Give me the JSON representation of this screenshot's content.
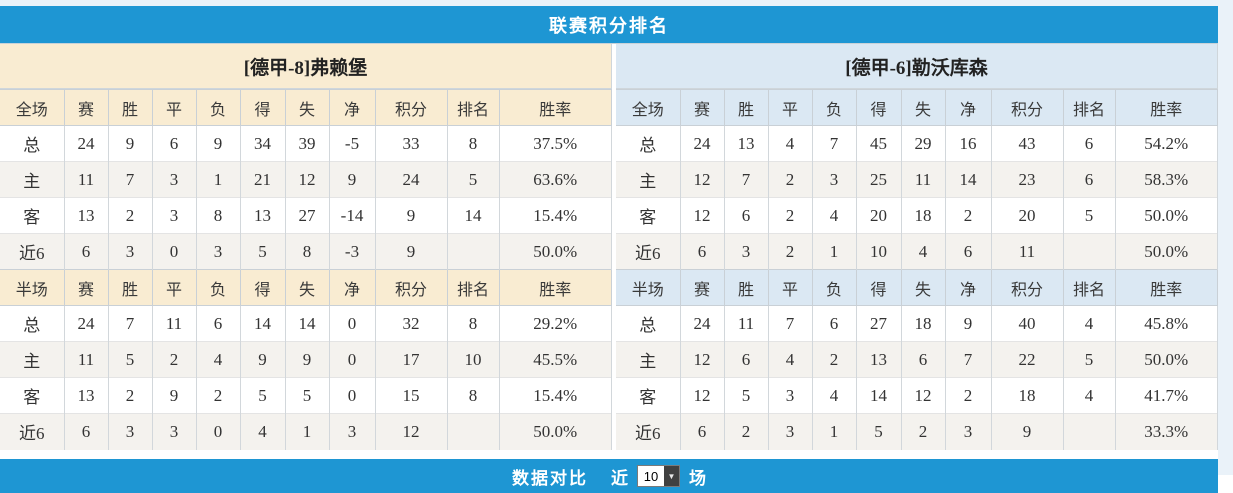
{
  "title": "联赛积分排名",
  "shared_columns": [
    "赛",
    "胜",
    "平",
    "负",
    "得",
    "失",
    "净",
    "积分",
    "排名",
    "胜率"
  ],
  "teams": [
    {
      "name": "[德甲-8]弗赖堡",
      "header_color": "#f9ecd2",
      "sections": [
        {
          "scope": "全场",
          "rows": [
            {
              "label": "总",
              "label_style": "total",
              "cells": [
                "24",
                "9",
                "6",
                "9",
                "34",
                "39",
                "-5"
              ],
              "points": "33",
              "rank": "8",
              "rate": "37.5%"
            },
            {
              "label": "主",
              "label_style": "home",
              "cells": [
                "11",
                "7",
                "3",
                "1",
                "21",
                "12",
                "9"
              ],
              "points": "24",
              "rank": "5",
              "rate": "63.6%"
            },
            {
              "label": "客",
              "label_style": "away",
              "cells": [
                "13",
                "2",
                "3",
                "8",
                "13",
                "27",
                "-14"
              ],
              "points": "9",
              "rank": "14",
              "rate": "15.4%"
            },
            {
              "label": "近6",
              "label_style": "total",
              "cells": [
                "6",
                "3",
                "0",
                "3",
                "5",
                "8",
                "-3"
              ],
              "points": "9",
              "rank": "",
              "rate": "50.0%"
            }
          ]
        },
        {
          "scope": "半场",
          "rows": [
            {
              "label": "总",
              "label_style": "total",
              "cells": [
                "24",
                "7",
                "11",
                "6",
                "14",
                "14",
                "0"
              ],
              "points": "32",
              "rank": "8",
              "rate": "29.2%"
            },
            {
              "label": "主",
              "label_style": "home",
              "cells": [
                "11",
                "5",
                "2",
                "4",
                "9",
                "9",
                "0"
              ],
              "points": "17",
              "rank": "10",
              "rate": "45.5%"
            },
            {
              "label": "客",
              "label_style": "away",
              "cells": [
                "13",
                "2",
                "9",
                "2",
                "5",
                "5",
                "0"
              ],
              "points": "15",
              "rank": "8",
              "rate": "15.4%"
            },
            {
              "label": "近6",
              "label_style": "total",
              "cells": [
                "6",
                "3",
                "3",
                "0",
                "4",
                "1",
                "3"
              ],
              "points": "12",
              "rank": "",
              "rate": "50.0%"
            }
          ]
        }
      ]
    },
    {
      "name": "[德甲-6]勒沃库森",
      "header_color": "#dbe8f3",
      "sections": [
        {
          "scope": "全场",
          "rows": [
            {
              "label": "总",
              "label_style": "total",
              "cells": [
                "24",
                "13",
                "4",
                "7",
                "45",
                "29",
                "16"
              ],
              "points": "43",
              "rank": "6",
              "rate": "54.2%"
            },
            {
              "label": "主",
              "label_style": "home",
              "cells": [
                "12",
                "7",
                "2",
                "3",
                "25",
                "11",
                "14"
              ],
              "points": "23",
              "rank": "6",
              "rate": "58.3%"
            },
            {
              "label": "客",
              "label_style": "away",
              "cells": [
                "12",
                "6",
                "2",
                "4",
                "20",
                "18",
                "2"
              ],
              "points": "20",
              "rank": "5",
              "rate": "50.0%"
            },
            {
              "label": "近6",
              "label_style": "total",
              "cells": [
                "6",
                "3",
                "2",
                "1",
                "10",
                "4",
                "6"
              ],
              "points": "11",
              "rank": "",
              "rate": "50.0%"
            }
          ]
        },
        {
          "scope": "半场",
          "rows": [
            {
              "label": "总",
              "label_style": "total",
              "cells": [
                "24",
                "11",
                "7",
                "6",
                "27",
                "18",
                "9"
              ],
              "points": "40",
              "rank": "4",
              "rate": "45.8%"
            },
            {
              "label": "主",
              "label_style": "home",
              "cells": [
                "12",
                "6",
                "4",
                "2",
                "13",
                "6",
                "7"
              ],
              "points": "22",
              "rank": "5",
              "rate": "50.0%"
            },
            {
              "label": "客",
              "label_style": "away",
              "cells": [
                "12",
                "5",
                "3",
                "4",
                "14",
                "12",
                "2"
              ],
              "points": "18",
              "rank": "4",
              "rate": "41.7%"
            },
            {
              "label": "近6",
              "label_style": "total",
              "cells": [
                "6",
                "2",
                "3",
                "1",
                "5",
                "2",
                "3"
              ],
              "points": "9",
              "rank": "",
              "rate": "33.3%"
            }
          ]
        }
      ]
    }
  ],
  "footer": {
    "compare_label": "数据对比",
    "near_label": "近",
    "select_value": "10",
    "games_label": "场"
  },
  "colors": {
    "title_bar": "#1e96d3",
    "left_theme": "#f9ecd2",
    "right_theme": "#dbe8f3",
    "alt_row": "#f4f2ee",
    "points_text": "#e74738",
    "rank_text": "#4a8fd0",
    "home_label": "#cc0000",
    "away_label": "#0000bb",
    "body_text": "#333333"
  }
}
